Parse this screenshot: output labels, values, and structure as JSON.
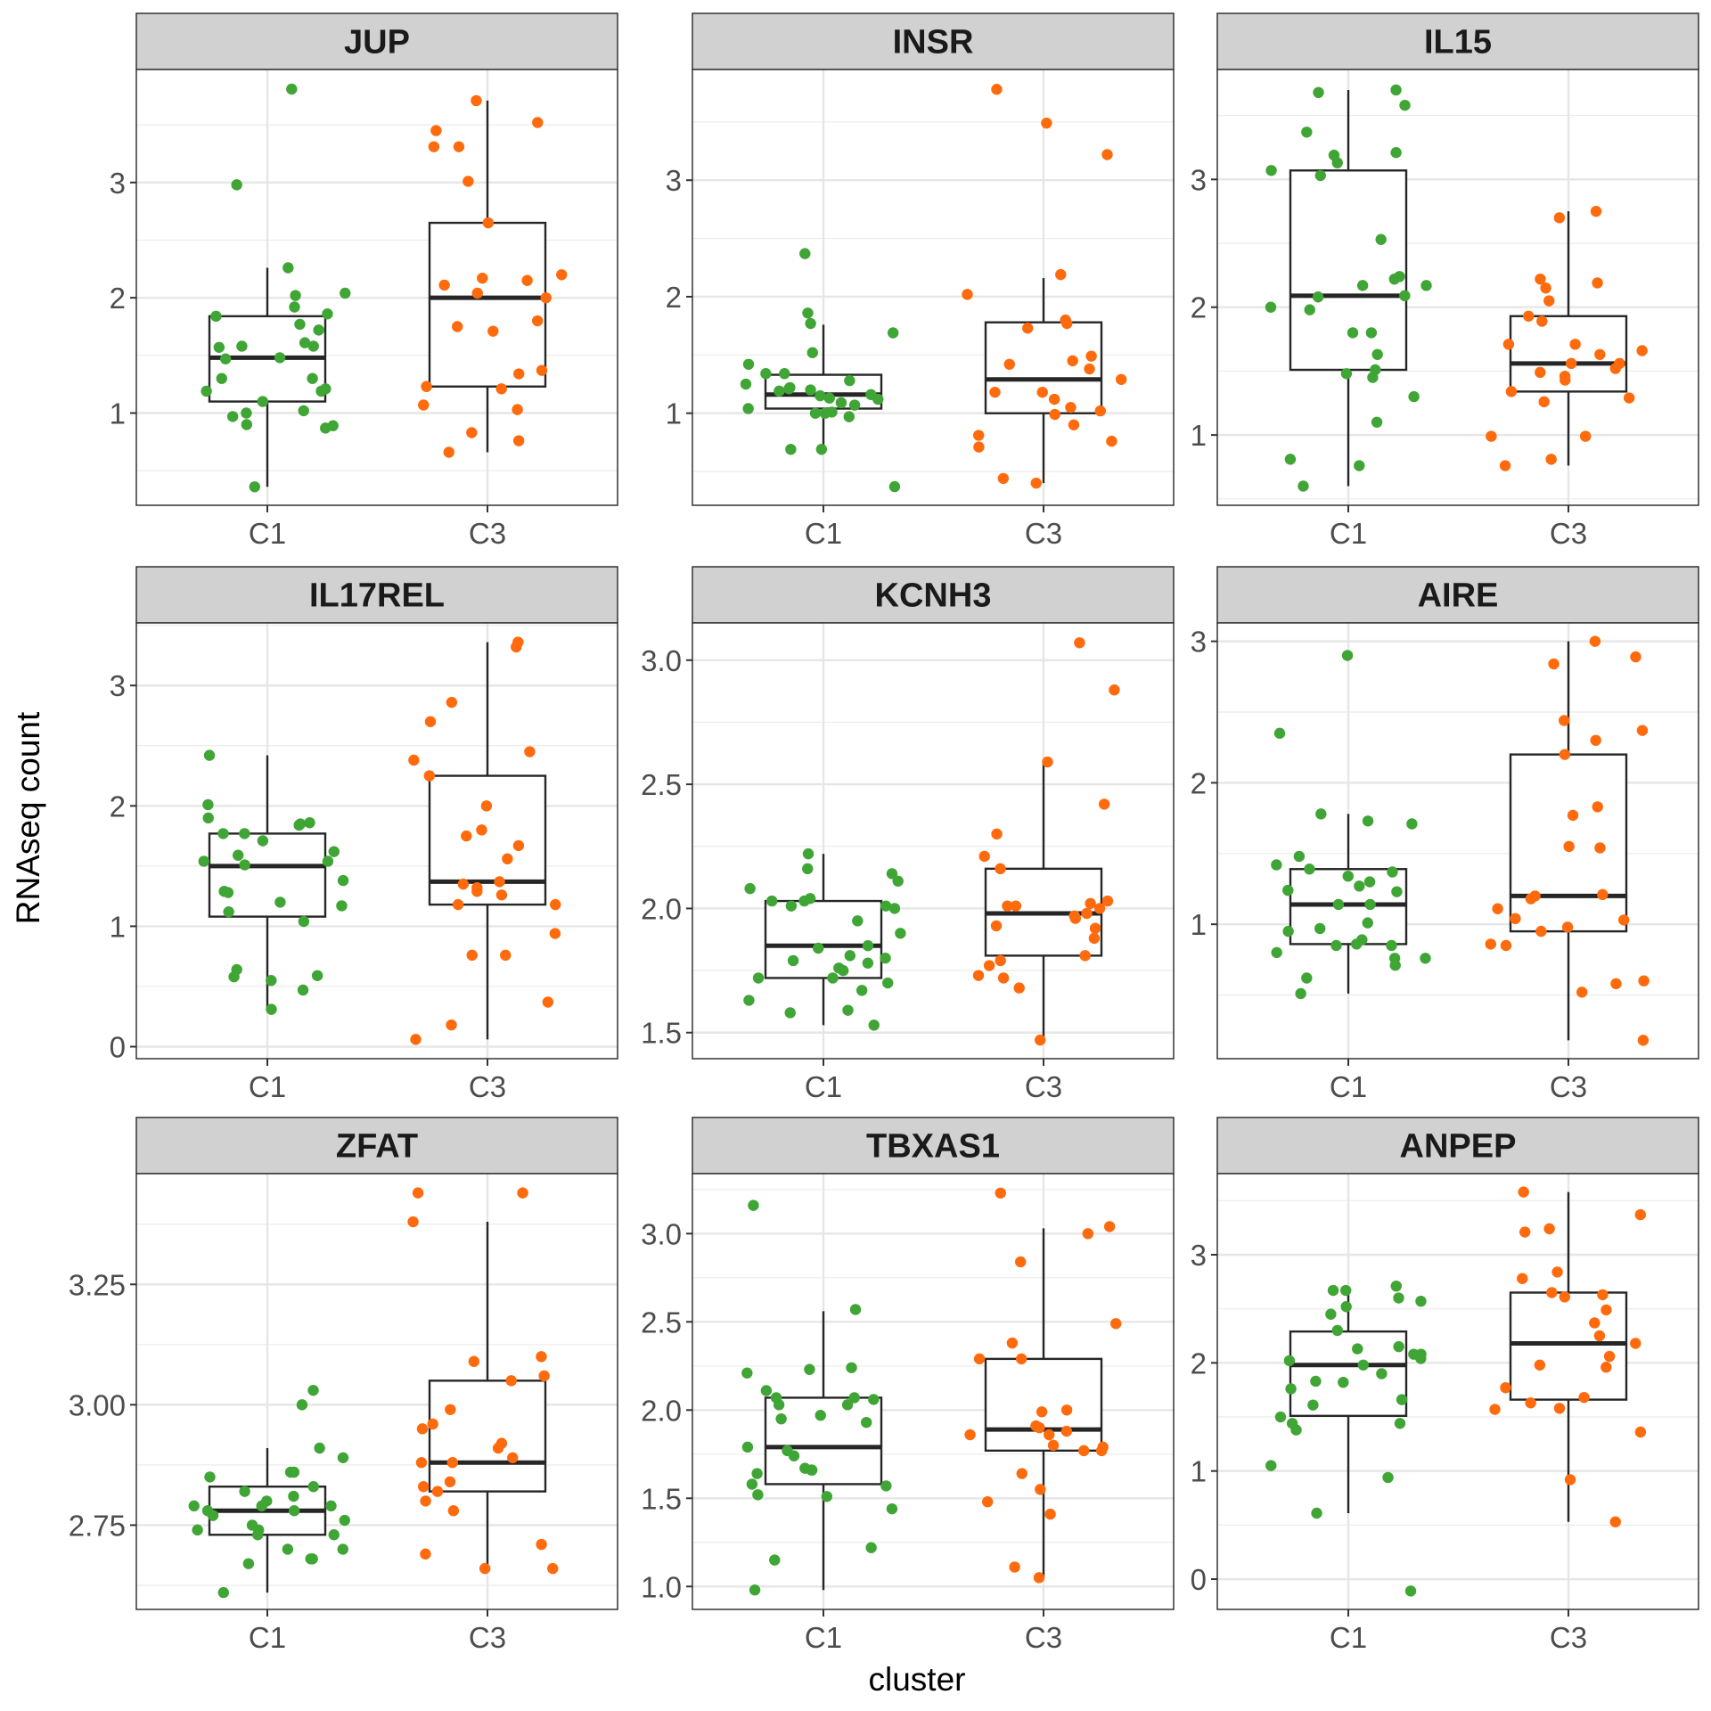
{
  "chart_data": {
    "type": "box+jitter",
    "layout": "facet-grid 3x3",
    "xlabel": "cluster",
    "ylabel": "RNAseq count",
    "categories": [
      "C1",
      "C3"
    ],
    "grid": true,
    "legend": "none",
    "colors": {
      "C1": "#3fa535",
      "C3": "#ff6a0d"
    },
    "panels": [
      {
        "title": "JUP",
        "ylim": [
          0.2,
          3.98
        ],
        "yticks": [
          1,
          2,
          3
        ],
        "ytick_labels": [
          "1",
          "2",
          "3"
        ],
        "minor_grid": [
          0.5,
          1.5,
          2.5,
          3.5
        ],
        "box": {
          "C1": {
            "whisker_low": 0.36,
            "q1": 1.1,
            "median": 1.48,
            "q3": 1.84,
            "whisker_high": 2.26
          },
          "C3": {
            "whisker_low": 0.66,
            "q1": 1.23,
            "median": 2.0,
            "q3": 2.65,
            "whisker_high": 3.71
          }
        },
        "points": {
          "C1": [
            3.81,
            2.98,
            2.26,
            2.04,
            2.02,
            1.92,
            1.84,
            1.86,
            1.77,
            1.72,
            1.61,
            1.58,
            1.58,
            1.57,
            1.48,
            1.47,
            1.3,
            1.3,
            1.21,
            1.19,
            1.19,
            1.1,
            1.02,
            1.0,
            0.97,
            0.9,
            0.89,
            0.87,
            0.36
          ],
          "C3": [
            3.71,
            3.52,
            3.45,
            3.31,
            3.31,
            3.01,
            2.65,
            2.2,
            2.17,
            2.15,
            2.11,
            2.04,
            2.0,
            1.8,
            1.75,
            1.71,
            1.37,
            1.34,
            1.23,
            1.21,
            1.07,
            1.03,
            0.83,
            0.76,
            0.66
          ]
        }
      },
      {
        "title": "INSR",
        "ylim": [
          0.21,
          3.95
        ],
        "yticks": [
          1,
          2,
          3
        ],
        "ytick_labels": [
          "1",
          "2",
          "3"
        ],
        "minor_grid": [
          0.5,
          1.5,
          2.5,
          3.5
        ],
        "box": {
          "C1": {
            "whisker_low": 0.69,
            "q1": 1.04,
            "median": 1.16,
            "q3": 1.33,
            "whisker_high": 1.76
          },
          "C3": {
            "whisker_low": 0.4,
            "q1": 1.0,
            "median": 1.29,
            "q3": 1.78,
            "whisker_high": 2.16
          }
        },
        "points": {
          "C1": [
            2.37,
            1.86,
            1.77,
            1.69,
            1.52,
            1.42,
            1.34,
            1.34,
            1.28,
            1.25,
            1.22,
            1.21,
            1.2,
            1.19,
            1.16,
            1.15,
            1.13,
            1.12,
            1.09,
            1.07,
            1.04,
            1.01,
            1.0,
            1.0,
            0.97,
            0.69,
            0.69,
            0.37
          ],
          "C3": [
            3.78,
            3.49,
            3.22,
            2.19,
            2.02,
            1.8,
            1.77,
            1.73,
            1.49,
            1.45,
            1.42,
            1.38,
            1.29,
            1.18,
            1.18,
            1.12,
            1.05,
            1.02,
            0.99,
            0.9,
            0.81,
            0.76,
            0.71,
            0.44,
            0.4
          ]
        }
      },
      {
        "title": "IL15",
        "ylim": [
          0.45,
          3.86
        ],
        "yticks": [
          1,
          2,
          3
        ],
        "ytick_labels": [
          "1",
          "2",
          "3"
        ],
        "minor_grid": [
          0.5,
          1.5,
          2.5,
          3.5
        ],
        "box": {
          "C1": {
            "whisker_low": 0.6,
            "q1": 1.51,
            "median": 2.09,
            "q3": 3.07,
            "whisker_high": 3.7
          },
          "C3": {
            "whisker_low": 0.76,
            "q1": 1.34,
            "median": 1.56,
            "q3": 1.93,
            "whisker_high": 2.75
          }
        },
        "points": {
          "C1": [
            3.7,
            3.68,
            3.58,
            3.37,
            3.21,
            3.19,
            3.13,
            3.07,
            3.03,
            2.53,
            2.24,
            2.22,
            2.17,
            2.17,
            2.09,
            2.08,
            2.0,
            1.98,
            1.8,
            1.8,
            1.63,
            1.51,
            1.48,
            1.45,
            1.3,
            1.1,
            0.81,
            0.76,
            0.6
          ],
          "C3": [
            2.75,
            2.7,
            2.22,
            2.19,
            2.15,
            2.05,
            1.93,
            1.89,
            1.71,
            1.71,
            1.66,
            1.63,
            1.56,
            1.56,
            1.52,
            1.49,
            1.46,
            1.43,
            1.34,
            1.29,
            1.26,
            0.99,
            0.99,
            0.81,
            0.76
          ]
        }
      },
      {
        "title": "IL17REL",
        "ylim": [
          -0.1,
          3.52
        ],
        "yticks": [
          0,
          1,
          2,
          3
        ],
        "ytick_labels": [
          "0",
          "1",
          "2",
          "3"
        ],
        "minor_grid": [
          0.5,
          1.5,
          2.5,
          3.5
        ],
        "box": {
          "C1": {
            "whisker_low": 0.31,
            "q1": 1.08,
            "median": 1.5,
            "q3": 1.77,
            "whisker_high": 2.42
          },
          "C3": {
            "whisker_low": 0.06,
            "q1": 1.18,
            "median": 1.37,
            "q3": 2.25,
            "whisker_high": 3.36
          }
        },
        "points": {
          "C1": [
            2.42,
            2.01,
            1.9,
            1.86,
            1.85,
            1.84,
            1.77,
            1.77,
            1.71,
            1.62,
            1.59,
            1.54,
            1.54,
            1.51,
            1.38,
            1.29,
            1.28,
            1.2,
            1.17,
            1.12,
            1.04,
            0.64,
            0.59,
            0.58,
            0.55,
            0.47,
            0.31
          ],
          "C3": [
            3.36,
            3.32,
            2.86,
            2.7,
            2.45,
            2.38,
            2.25,
            2.0,
            1.8,
            1.75,
            1.67,
            1.56,
            1.37,
            1.35,
            1.32,
            1.29,
            1.26,
            1.18,
            1.18,
            0.94,
            0.76,
            0.76,
            0.37,
            0.18,
            0.06
          ]
        }
      },
      {
        "title": "KCNH3",
        "ylim": [
          1.395,
          3.15
        ],
        "yticks": [
          1.5,
          2.0,
          2.5,
          3.0
        ],
        "ytick_labels": [
          "1.5",
          "2.0",
          "2.5",
          "3.0"
        ],
        "minor_grid": [
          1.75,
          2.25,
          2.75
        ],
        "box": {
          "C1": {
            "whisker_low": 1.53,
            "q1": 1.72,
            "median": 1.85,
            "q3": 2.03,
            "whisker_high": 2.22
          },
          "C3": {
            "whisker_low": 1.47,
            "q1": 1.81,
            "median": 1.98,
            "q3": 2.16,
            "whisker_high": 2.59
          }
        },
        "points": {
          "C1": [
            2.22,
            2.16,
            2.14,
            2.11,
            2.08,
            2.04,
            2.03,
            2.03,
            2.01,
            2.01,
            2.0,
            1.95,
            1.9,
            1.85,
            1.84,
            1.81,
            1.8,
            1.79,
            1.78,
            1.76,
            1.75,
            1.72,
            1.72,
            1.7,
            1.67,
            1.63,
            1.59,
            1.58,
            1.53
          ],
          "C3": [
            3.07,
            2.88,
            2.59,
            2.42,
            2.3,
            2.21,
            2.16,
            2.03,
            2.02,
            2.01,
            2.01,
            2.0,
            1.98,
            1.97,
            1.96,
            1.93,
            1.92,
            1.88,
            1.81,
            1.79,
            1.77,
            1.73,
            1.72,
            1.68,
            1.47
          ]
        }
      },
      {
        "title": "AIRE",
        "ylim": [
          0.05,
          3.13
        ],
        "yticks": [
          1,
          2,
          3
        ],
        "ytick_labels": [
          "1",
          "2",
          "3"
        ],
        "minor_grid": [
          0.5,
          1.5,
          2.5
        ],
        "box": {
          "C1": {
            "whisker_low": 0.51,
            "q1": 0.86,
            "median": 1.14,
            "q3": 1.39,
            "whisker_high": 1.78
          },
          "C3": {
            "whisker_low": 0.18,
            "q1": 0.95,
            "median": 1.2,
            "q3": 2.2,
            "whisker_high": 3.0
          }
        },
        "points": {
          "C1": [
            2.9,
            2.35,
            1.78,
            1.73,
            1.71,
            1.48,
            1.42,
            1.39,
            1.37,
            1.34,
            1.3,
            1.27,
            1.24,
            1.23,
            1.14,
            1.14,
            1.01,
            0.97,
            0.95,
            0.89,
            0.86,
            0.85,
            0.85,
            0.8,
            0.76,
            0.76,
            0.71,
            0.62,
            0.51
          ],
          "C3": [
            3.0,
            2.89,
            2.84,
            2.44,
            2.37,
            2.3,
            2.2,
            1.83,
            1.77,
            1.55,
            1.54,
            1.21,
            1.2,
            1.18,
            1.11,
            1.04,
            1.03,
            0.98,
            0.95,
            0.86,
            0.85,
            0.6,
            0.58,
            0.52,
            0.18
          ]
        }
      },
      {
        "title": "ZFAT",
        "ylim": [
          2.575,
          3.48
        ],
        "yticks": [
          2.75,
          3.0,
          3.25
        ],
        "ytick_labels": [
          "2.75",
          "3.00",
          "3.25"
        ],
        "minor_grid": [
          2.625,
          2.875,
          3.125,
          3.375
        ],
        "box": {
          "C1": {
            "whisker_low": 2.61,
            "q1": 2.73,
            "median": 2.78,
            "q3": 2.83,
            "whisker_high": 2.91
          },
          "C3": {
            "whisker_low": 2.66,
            "q1": 2.82,
            "median": 2.88,
            "q3": 3.05,
            "whisker_high": 3.38
          }
        },
        "points": {
          "C1": [
            3.03,
            3.0,
            2.91,
            2.89,
            2.86,
            2.86,
            2.85,
            2.83,
            2.82,
            2.81,
            2.8,
            2.79,
            2.79,
            2.79,
            2.78,
            2.78,
            2.77,
            2.76,
            2.75,
            2.74,
            2.74,
            2.73,
            2.73,
            2.7,
            2.7,
            2.68,
            2.68,
            2.67,
            2.61
          ],
          "C3": [
            3.44,
            3.44,
            3.38,
            3.1,
            3.09,
            3.06,
            3.05,
            2.99,
            2.96,
            2.95,
            2.92,
            2.91,
            2.89,
            2.88,
            2.88,
            2.84,
            2.83,
            2.82,
            2.8,
            2.78,
            2.71,
            2.69,
            2.66,
            2.66
          ]
        }
      },
      {
        "title": "TBXAS1",
        "ylim": [
          0.87,
          3.34
        ],
        "yticks": [
          1.0,
          1.5,
          2.0,
          2.5,
          3.0
        ],
        "ytick_labels": [
          "1.0",
          "1.5",
          "2.0",
          "2.5",
          "3.0"
        ],
        "minor_grid": [
          1.25,
          1.75,
          2.25,
          2.75,
          3.25
        ],
        "box": {
          "C1": {
            "whisker_low": 0.98,
            "q1": 1.58,
            "median": 1.79,
            "q3": 2.07,
            "whisker_high": 2.56
          },
          "C3": {
            "whisker_low": 1.05,
            "q1": 1.77,
            "median": 1.89,
            "q3": 2.29,
            "whisker_high": 3.03
          }
        },
        "points": {
          "C1": [
            3.16,
            2.57,
            2.24,
            2.23,
            2.21,
            2.11,
            2.07,
            2.07,
            2.06,
            2.03,
            2.03,
            1.97,
            1.95,
            1.93,
            1.79,
            1.77,
            1.74,
            1.67,
            1.66,
            1.66,
            1.64,
            1.58,
            1.57,
            1.52,
            1.51,
            1.44,
            1.22,
            1.15,
            0.98
          ],
          "C3": [
            3.23,
            3.04,
            3.0,
            2.84,
            2.49,
            2.38,
            2.29,
            2.29,
            2.0,
            1.99,
            1.91,
            1.9,
            1.88,
            1.86,
            1.86,
            1.8,
            1.79,
            1.77,
            1.77,
            1.64,
            1.55,
            1.48,
            1.41,
            1.11,
            1.05
          ]
        }
      },
      {
        "title": "ANPEP",
        "ylim": [
          -0.28,
          3.75
        ],
        "yticks": [
          0,
          1,
          2,
          3
        ],
        "ytick_labels": [
          "0",
          "1",
          "2",
          "3"
        ],
        "minor_grid": [
          0.5,
          1.5,
          2.5,
          3.5
        ],
        "box": {
          "C1": {
            "whisker_low": 0.61,
            "q1": 1.51,
            "median": 1.98,
            "q3": 2.29,
            "whisker_high": 2.71
          },
          "C3": {
            "whisker_low": 0.53,
            "q1": 1.66,
            "median": 2.18,
            "q3": 2.65,
            "whisker_high": 3.58
          }
        },
        "points": {
          "C1": [
            2.71,
            2.67,
            2.67,
            2.6,
            2.57,
            2.52,
            2.45,
            2.3,
            2.15,
            2.13,
            2.08,
            2.08,
            2.04,
            2.02,
            1.98,
            1.9,
            1.83,
            1.82,
            1.76,
            1.66,
            1.61,
            1.5,
            1.44,
            1.44,
            1.38,
            1.05,
            0.94,
            0.61,
            -0.11
          ],
          "C3": [
            3.58,
            3.37,
            3.24,
            3.21,
            2.84,
            2.78,
            2.65,
            2.63,
            2.61,
            2.49,
            2.37,
            2.25,
            2.18,
            2.06,
            1.98,
            1.96,
            1.77,
            1.68,
            1.63,
            1.58,
            1.57,
            1.36,
            0.92,
            0.53
          ]
        }
      }
    ]
  }
}
